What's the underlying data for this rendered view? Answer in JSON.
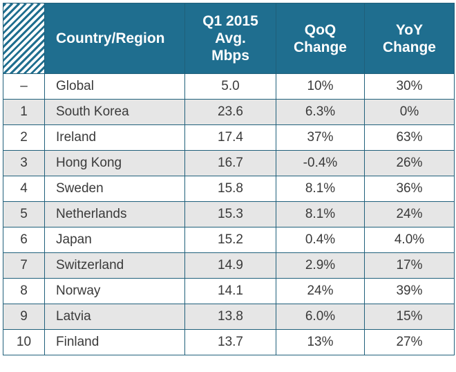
{
  "table": {
    "headers": {
      "country": "Country/Region",
      "avg": "Q1 2015\nAvg.\nMbps",
      "qoq": "QoQ\nChange",
      "yoy": "YoY\nChange"
    },
    "rows": [
      {
        "rank": "–",
        "country": "Global",
        "avg": "5.0",
        "qoq": "10%",
        "yoy": "30%"
      },
      {
        "rank": "1",
        "country": "South Korea",
        "avg": "23.6",
        "qoq": "6.3%",
        "yoy": "0%"
      },
      {
        "rank": "2",
        "country": "Ireland",
        "avg": "17.4",
        "qoq": "37%",
        "yoy": "63%"
      },
      {
        "rank": "3",
        "country": "Hong Kong",
        "avg": "16.7",
        "qoq": "-0.4%",
        "yoy": "26%"
      },
      {
        "rank": "4",
        "country": "Sweden",
        "avg": "15.8",
        "qoq": "8.1%",
        "yoy": "36%"
      },
      {
        "rank": "5",
        "country": "Netherlands",
        "avg": "15.3",
        "qoq": "8.1%",
        "yoy": "24%"
      },
      {
        "rank": "6",
        "country": "Japan",
        "avg": "15.2",
        "qoq": "0.4%",
        "yoy": "4.0%"
      },
      {
        "rank": "7",
        "country": "Switzerland",
        "avg": "14.9",
        "qoq": "2.9%",
        "yoy": "17%"
      },
      {
        "rank": "8",
        "country": "Norway",
        "avg": "14.1",
        "qoq": "24%",
        "yoy": "39%"
      },
      {
        "rank": "9",
        "country": "Latvia",
        "avg": "13.8",
        "qoq": "6.0%",
        "yoy": "15%"
      },
      {
        "rank": "10",
        "country": "Finland",
        "avg": "13.7",
        "qoq": "13%",
        "yoy": "27%"
      }
    ]
  },
  "colors": {
    "header_bg": "#1f6e8f",
    "border": "#1f5f7a",
    "row_shade": "#e6e6e6"
  }
}
